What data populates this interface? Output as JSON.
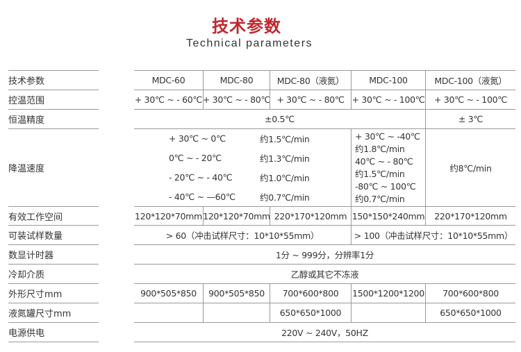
{
  "title": "技术参数",
  "subtitle": "Technical parameters",
  "labels": [
    "技术参数",
    "控温范围",
    "恒温精度",
    "降温速度",
    "有效工作空间",
    "可装试样数量",
    "数显计时器",
    "冷却介质",
    "外形尺寸mm",
    "液氮罐尺寸mm",
    "电源供电"
  ],
  "models": [
    "MDC-60",
    "MDC-80",
    "MDC-80（液氮）",
    "MDC-100",
    "MDC-100（液氮）"
  ],
  "temp_range": [
    "+ 30℃ ~ - 60℃",
    "+ 30℃ ~ - 80℃",
    "+ 30℃ ~ - 80℃",
    "+ 30℃ ~ - 100℃",
    "+ 30℃ ~ - 100℃"
  ],
  "accuracy": [
    "±0.5℃",
    "± 3℃"
  ],
  "cooling": {
    "ranges": [
      "+ 30℃ ~ 0℃",
      "0℃ ~  - 20℃",
      "- 20℃ ~  - 40℃",
      "- 40℃ ~ —60℃"
    ],
    "rates": [
      "约1.5℃/min",
      "约1.3℃/min",
      "约1.0℃/min",
      "约0.7℃/min"
    ],
    "mdc100": [
      " + 30℃ ~ -40℃",
      "约1.8℃/min",
      "40℃ ~  - 80℃",
      "约1.5℃/min",
      "-80℃ ~ 100℃",
      "约0.7℃/min"
    ],
    "mdc100_ln": "约8℃/min"
  },
  "work_space": [
    "120*120*70mm",
    "120*120*70mm",
    "220*170*120mm",
    "150*150*240mm",
    "220*170*120mm"
  ],
  "samples": [
    "> 60（冲击试样尺寸：10*10*55mm）",
    "> 100（冲击试样尺寸：10*10*55mm）"
  ],
  "timer": "1分 ~ 999分，分辨率1分",
  "medium": "乙醇或其它不冻液",
  "dimensions": [
    "900*505*850",
    "900*505*850",
    "700*600*800",
    "1500*1200*1200",
    "700*600*800"
  ],
  "ln_tank": [
    "",
    "",
    "650*650*1000",
    "",
    "650*650*1000"
  ],
  "power": "220V ~ 240V，50HZ"
}
